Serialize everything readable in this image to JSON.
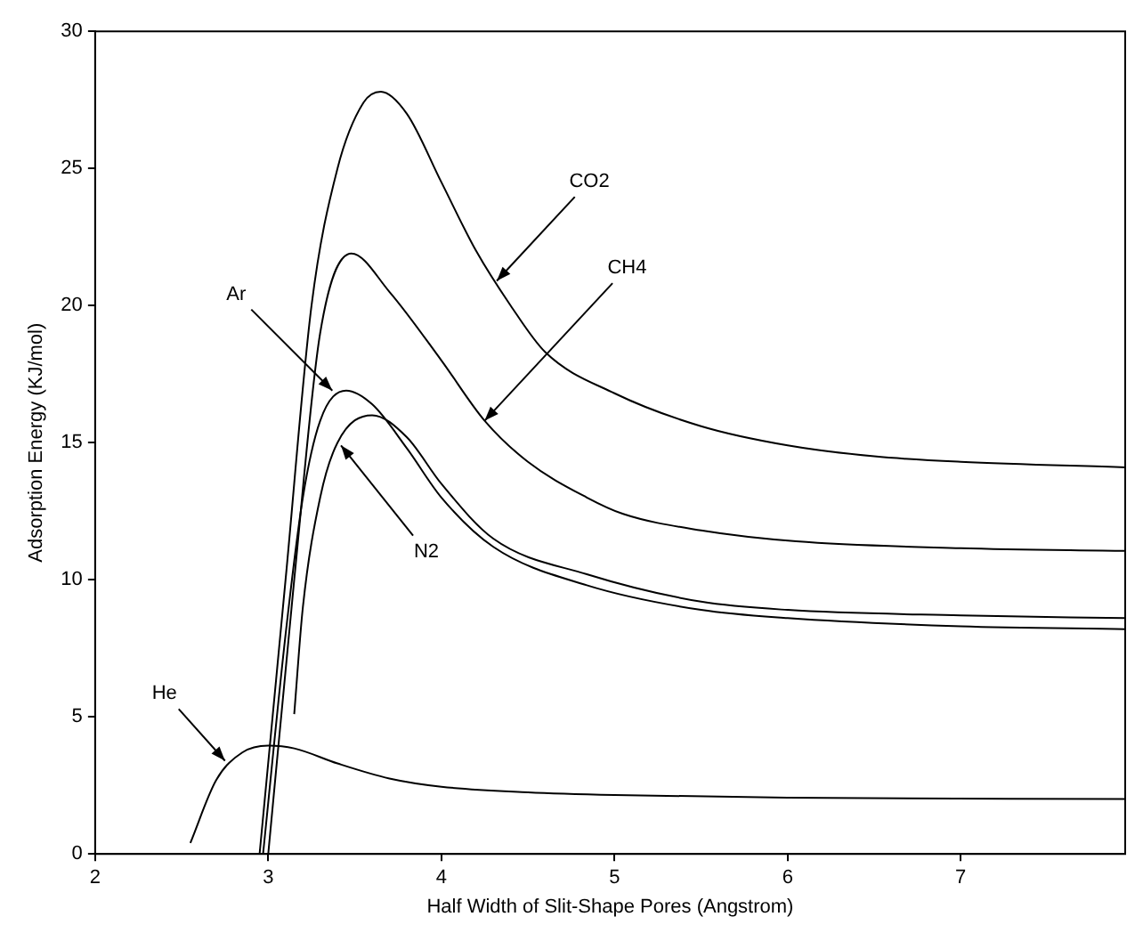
{
  "chart_data": {
    "type": "line",
    "xlabel": "Half Width of Slit-Shape Pores (Angstrom)",
    "ylabel": "Adsorption Energy (KJ/mol)",
    "xlim": [
      2,
      7.95
    ],
    "xticks": [
      2,
      3,
      4,
      5,
      6,
      7
    ],
    "ylim": [
      0,
      30
    ],
    "yticks": [
      0,
      5,
      10,
      15,
      20,
      25,
      30
    ],
    "grid": false,
    "legend": false,
    "marker": "none",
    "line_style": "solid",
    "series": [
      {
        "color": "#000000",
        "x": [
          2.95,
          3.1,
          3.25,
          3.4,
          3.55,
          3.65,
          3.8,
          4.0,
          4.2,
          4.4,
          4.6,
          5.0,
          5.5,
          6.0,
          6.5,
          7.0,
          7.95
        ],
        "values": [
          0,
          10,
          20,
          25,
          27.4,
          27.8,
          27,
          24.5,
          22,
          20,
          18.3,
          16.8,
          15.6,
          14.9,
          14.5,
          14.3,
          14.1
        ]
      },
      {
        "color": "#000000",
        "x": [
          3.0,
          3.15,
          3.3,
          3.48,
          3.7,
          4.0,
          4.25,
          4.5,
          4.84,
          5.05,
          5.5,
          6.05,
          7.0,
          7.95
        ],
        "values": [
          0,
          10,
          19,
          21.9,
          20.5,
          18,
          15.8,
          14.3,
          13.0,
          12.4,
          11.8,
          11.4,
          11.15,
          11.05
        ]
      },
      {
        "color": "#000000",
        "x": [
          2.97,
          3.1,
          3.2,
          3.3,
          3.45,
          3.6,
          3.8,
          4.0,
          4.3,
          4.84,
          5.5,
          6.0,
          7.0,
          7.95
        ],
        "values": [
          0,
          8,
          13,
          15.8,
          16.9,
          16.4,
          14.8,
          13,
          11.2,
          9.8,
          8.9,
          8.6,
          8.3,
          8.2
        ]
      },
      {
        "color": "#000000",
        "x": [
          3.15,
          3.2,
          3.3,
          3.4,
          3.6,
          3.8,
          4.0,
          4.3,
          4.84,
          5.5,
          6.0,
          7.0,
          7.95
        ],
        "values": [
          5.1,
          9,
          13,
          15,
          16.0,
          15.2,
          13.5,
          11.5,
          10.2,
          9.2,
          8.9,
          8.7,
          8.6
        ]
      },
      {
        "color": "#000000",
        "x": [
          2.55,
          2.7,
          2.85,
          3.0,
          3.15,
          3.4,
          3.7,
          4.0,
          4.5,
          5.0,
          6.0,
          7.95
        ],
        "values": [
          0.4,
          2.7,
          3.7,
          3.95,
          3.85,
          3.3,
          2.75,
          2.45,
          2.25,
          2.15,
          2.05,
          2.0
        ]
      }
    ],
    "annotations": [
      {
        "text": "CO2",
        "x": 4.32,
        "y": 20.9
      },
      {
        "text": "CH4",
        "x": 4.25,
        "y": 15.8
      },
      {
        "text": "Ar",
        "x": 3.37,
        "y": 16.9
      },
      {
        "text": "N2",
        "x": 3.42,
        "y": 14.9
      },
      {
        "text": "He",
        "x": 2.75,
        "y": 3.4
      }
    ]
  }
}
